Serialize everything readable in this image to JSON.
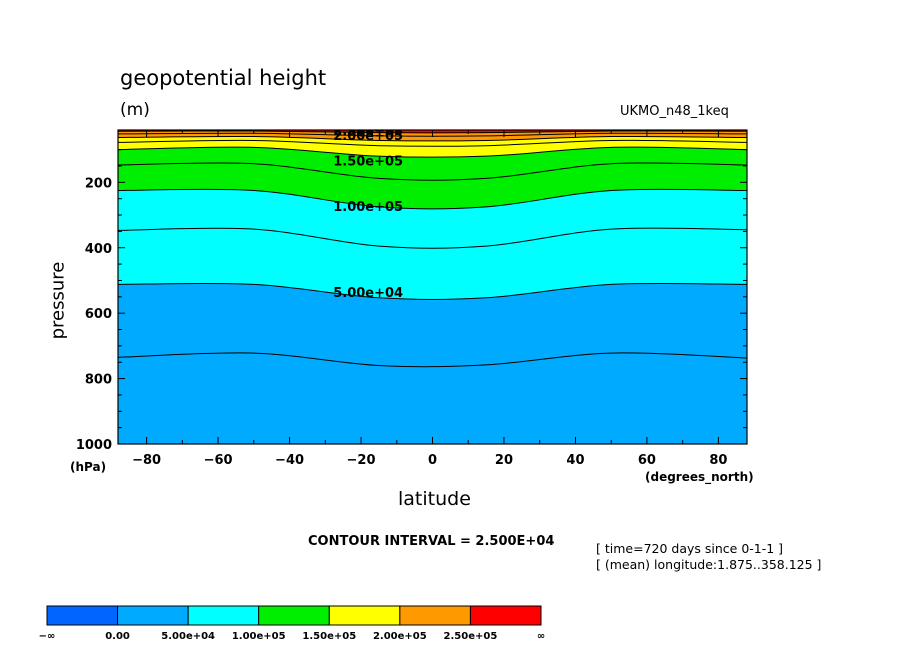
{
  "chart_data": {
    "type": "contour",
    "title": "geopotential height",
    "units": "(m)",
    "dataset": "UKMO_n48_1keq",
    "xlabel": "latitude",
    "ylabel": "pressure",
    "x_unit": "(degrees_north)",
    "y_unit": "(hPa)",
    "xlim": [
      -88,
      88
    ],
    "ylim": [
      1000,
      40
    ],
    "x_ticks": [
      -80,
      -60,
      -40,
      -20,
      0,
      20,
      40,
      60,
      80
    ],
    "x_tick_labels": [
      "−80",
      "−60",
      "−40",
      "−20",
      "0",
      "20",
      "40",
      "60",
      "80"
    ],
    "y_ticks": [
      200,
      400,
      600,
      800,
      1000
    ],
    "contour_interval_label": "CONTOUR INTERVAL = 2.500E+04",
    "info_lines": [
      "[ time=720 days since 0-1-1 ]",
      "[ (mean) longitude:1.875..358.125 ]"
    ],
    "level_labels": [
      {
        "label": "2.50e+05",
        "lat": -18,
        "pressure": 40
      },
      {
        "label": "2.00e+05",
        "lat": -18,
        "pressure": 55
      },
      {
        "label": "1.50e+05",
        "lat": -18,
        "pressure": 133
      },
      {
        "label": "1.00e+05",
        "lat": -18,
        "pressure": 273
      },
      {
        "label": "5.00e+04",
        "lat": -18,
        "pressure": 535
      }
    ],
    "contours": [
      {
        "level": 25000,
        "pressure": [
          735,
          722,
          760,
          758,
          722,
          737
        ],
        "style": "line"
      },
      {
        "level": 50000,
        "pressure": [
          512,
          512,
          553,
          553,
          512,
          512
        ],
        "style": "boundary"
      },
      {
        "level": 75000,
        "pressure": [
          347,
          343,
          395,
          395,
          343,
          345
        ],
        "style": "line"
      },
      {
        "level": 100000,
        "pressure": [
          225,
          225,
          275,
          275,
          225,
          225
        ],
        "style": "boundary"
      },
      {
        "level": 125000,
        "pressure": [
          147,
          143,
          188,
          188,
          143,
          147
        ],
        "style": "line"
      },
      {
        "level": 150000,
        "pressure": [
          100,
          93,
          120,
          120,
          93,
          100
        ],
        "style": "boundary"
      },
      {
        "level": 175000,
        "pressure": [
          78,
          72,
          88,
          88,
          72,
          78
        ],
        "style": "line"
      },
      {
        "level": 200000,
        "pressure": [
          63,
          60,
          72,
          72,
          60,
          63
        ],
        "style": "boundary"
      },
      {
        "level": 225000,
        "pressure": [
          52,
          50,
          58,
          58,
          50,
          52
        ],
        "style": "line"
      },
      {
        "level": 250000,
        "pressure": [
          44,
          43,
          48,
          48,
          43,
          44
        ],
        "style": "boundary"
      }
    ],
    "contour_lats": [
      -88,
      -50,
      -15,
      15,
      50,
      88
    ],
    "fill_bands": [
      {
        "from_level": 0,
        "color": "#00aaff"
      },
      {
        "from_level": 50000,
        "color": "#00ffff"
      },
      {
        "from_level": 100000,
        "color": "#00ee00"
      },
      {
        "from_level": 150000,
        "color": "#ffff00"
      },
      {
        "from_level": 200000,
        "color": "#ff9900"
      },
      {
        "from_level": 250000,
        "color": "#ff0000"
      }
    ],
    "colorbar": {
      "colors": [
        "#0066ff",
        "#00aaff",
        "#00ffff",
        "#00ee00",
        "#ffff00",
        "#ff9900",
        "#ff0000"
      ],
      "labels": [
        "−∞",
        "0.00",
        "5.00e+04",
        "1.00e+05",
        "1.50e+05",
        "2.00e+05",
        "2.50e+05",
        "∞"
      ]
    }
  }
}
